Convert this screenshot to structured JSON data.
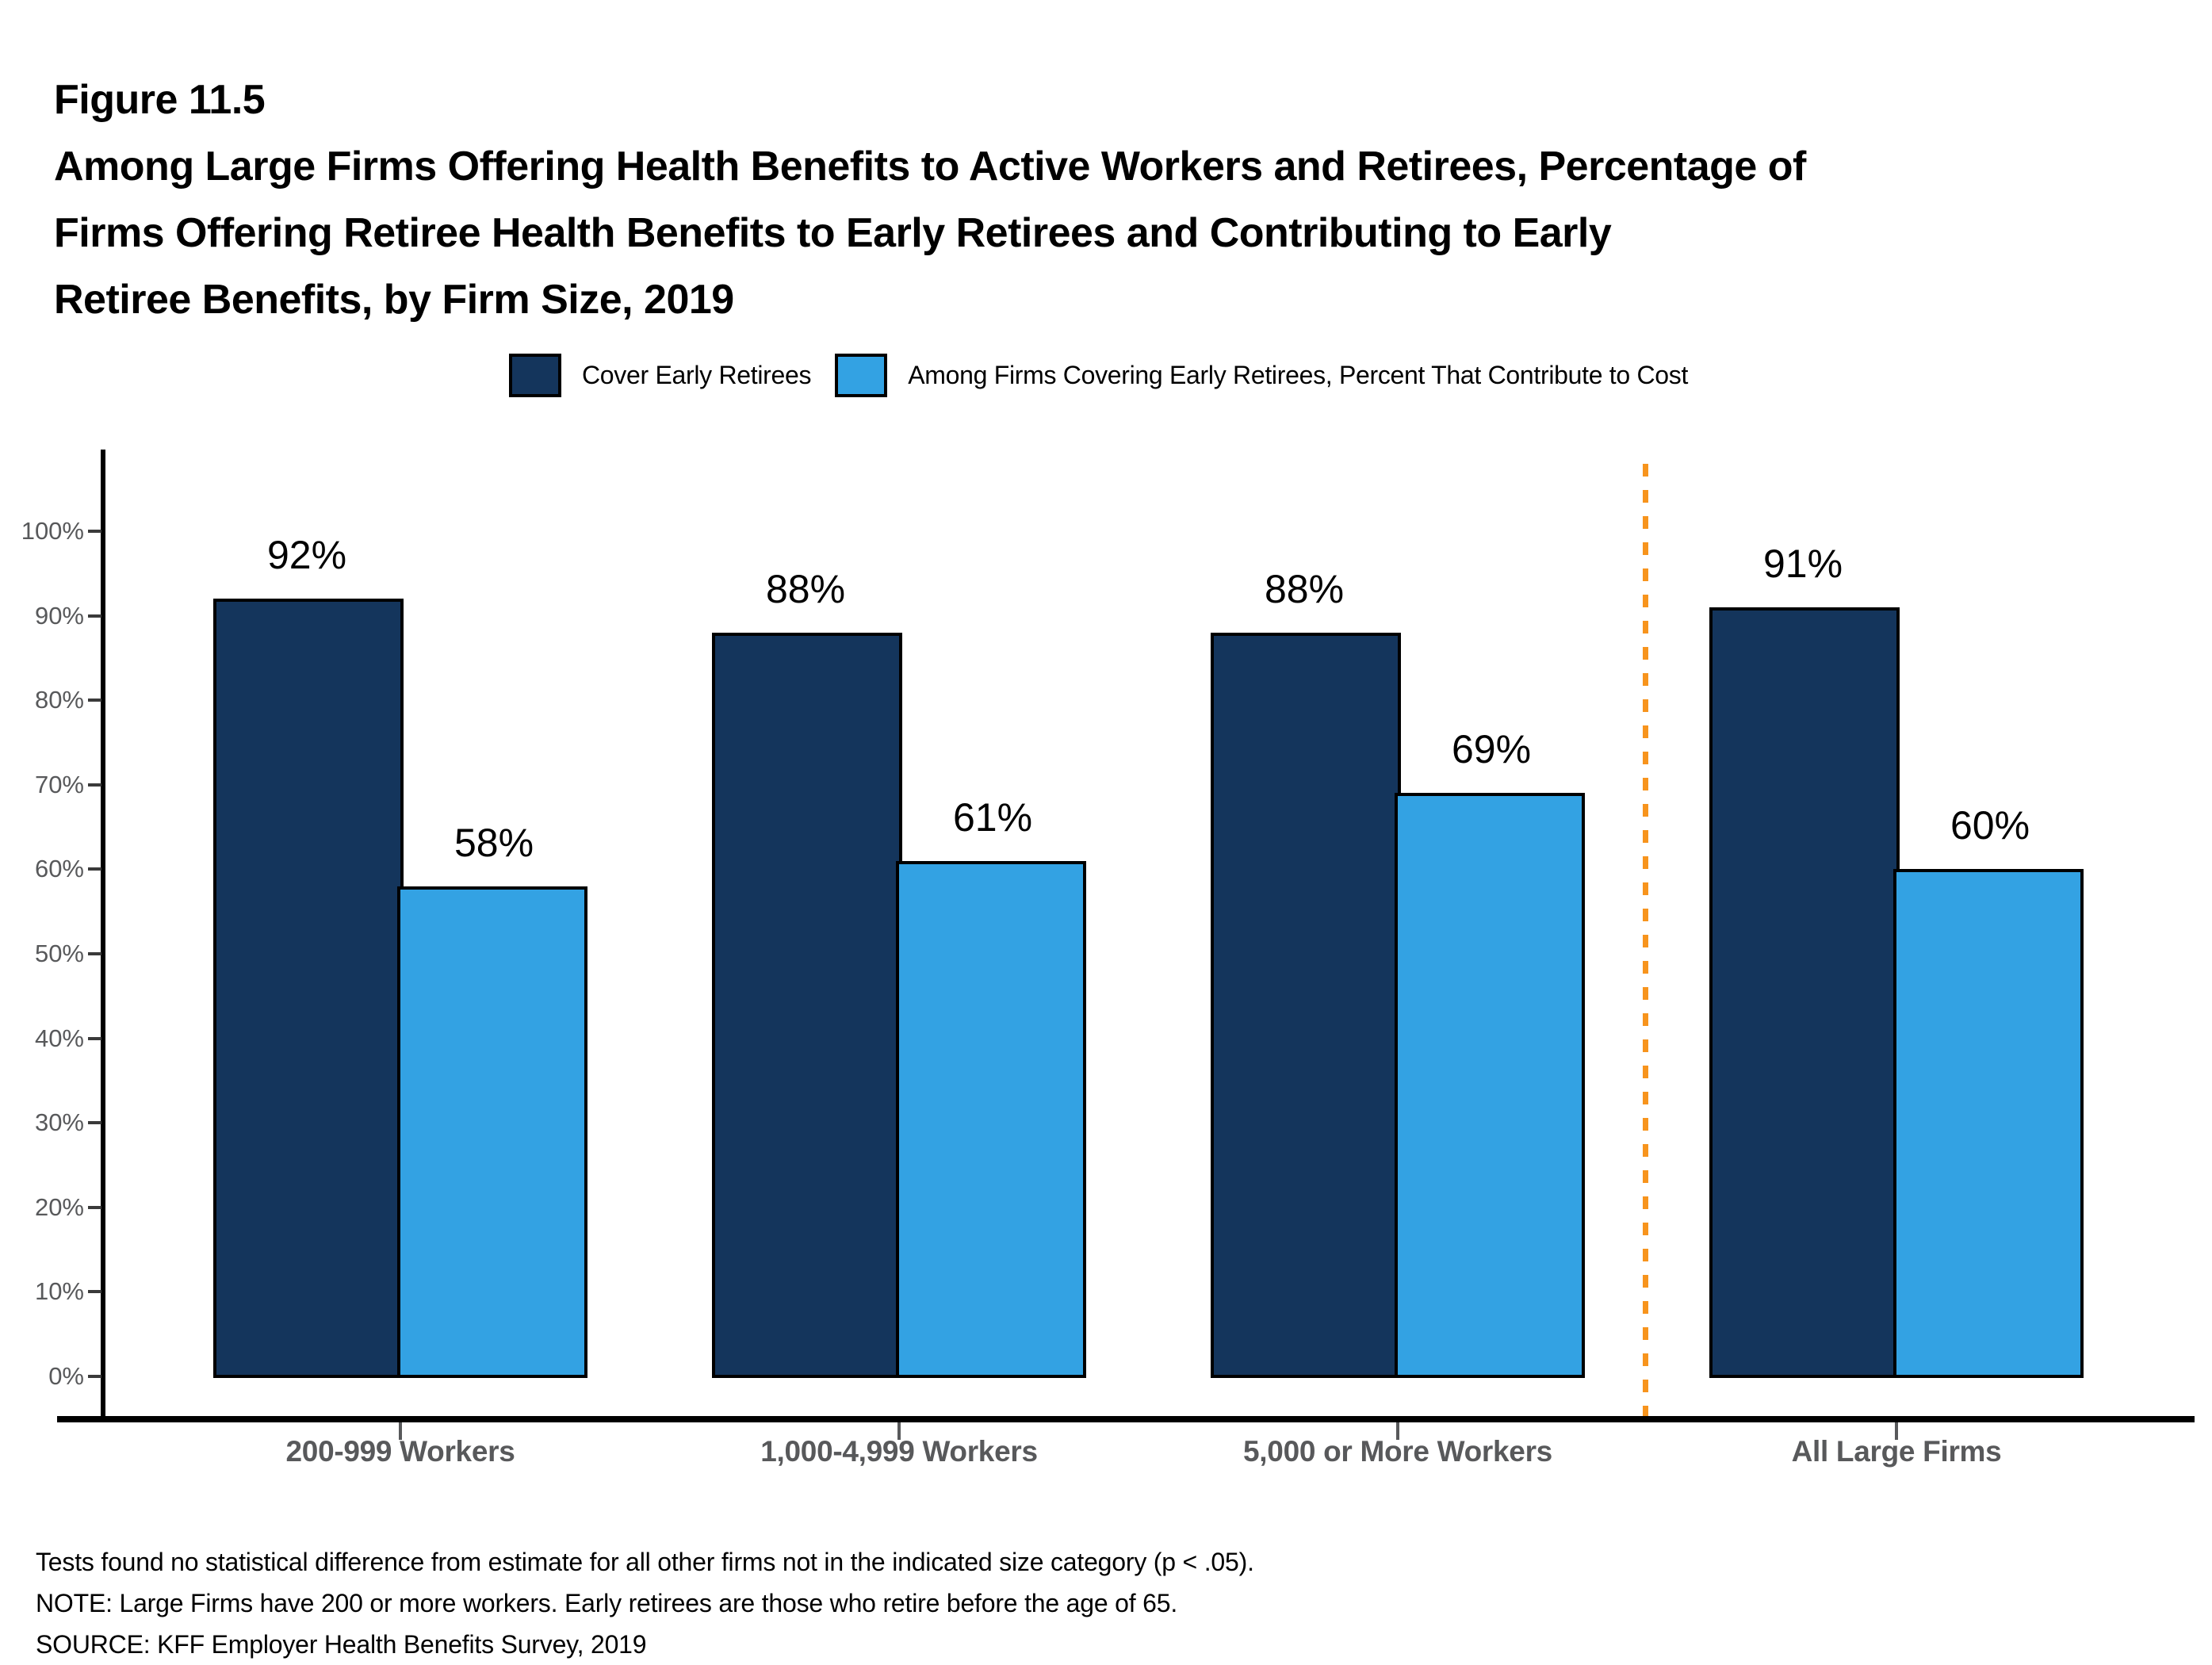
{
  "figure": {
    "label": "Figure 11.5"
  },
  "title": {
    "lines": [
      "Among Large Firms Offering Health Benefits to Active Workers and Retirees, Percentage of",
      "Firms Offering Retiree Health Benefits to Early Retirees and Contributing to Early",
      "Retiree Benefits, by Firm Size, 2019"
    ]
  },
  "chart_data": {
    "type": "bar",
    "title": "Among Large Firms Offering Health Benefits to Active Workers and Retirees, Percentage of Firms Offering Retiree Health Benefits to Early Retirees and Contributing to Early Retiree Benefits, by Firm Size, 2019",
    "categories": [
      "200-999 Workers",
      "1,000-4,999 Workers",
      "5,000 or More Workers",
      "All Large Firms"
    ],
    "series": [
      {
        "name": "Cover Early Retirees",
        "color": "#14355C",
        "values": [
          92,
          88,
          88,
          91
        ]
      },
      {
        "name": "Among Firms Covering Early Retirees, Percent That Contribute to Cost",
        "color": "#33A2E3",
        "values": [
          58,
          61,
          69,
          60
        ]
      }
    ],
    "data_labels": [
      [
        "92%",
        "88%",
        "88%",
        "91%"
      ],
      [
        "58%",
        "61%",
        "69%",
        "60%"
      ]
    ],
    "y_axis": {
      "ticks": [
        "0%",
        "10%",
        "20%",
        "30%",
        "40%",
        "50%",
        "60%",
        "70%",
        "80%",
        "90%",
        "100%"
      ],
      "min": 0,
      "max": 100,
      "grid": false
    },
    "separator": {
      "before_category": "All Large Firms",
      "color": "#F7941D",
      "style": "dashed"
    },
    "legend_position": "top"
  },
  "footnotes": [
    "Tests found no statistical difference from estimate for all other firms not in the indicated size category (p < .05).",
    "NOTE: Large Firms have 200 or more workers. Early retirees are those who retire before the age of 65.",
    "SOURCE: KFF Employer Health Benefits Survey, 2019"
  ]
}
